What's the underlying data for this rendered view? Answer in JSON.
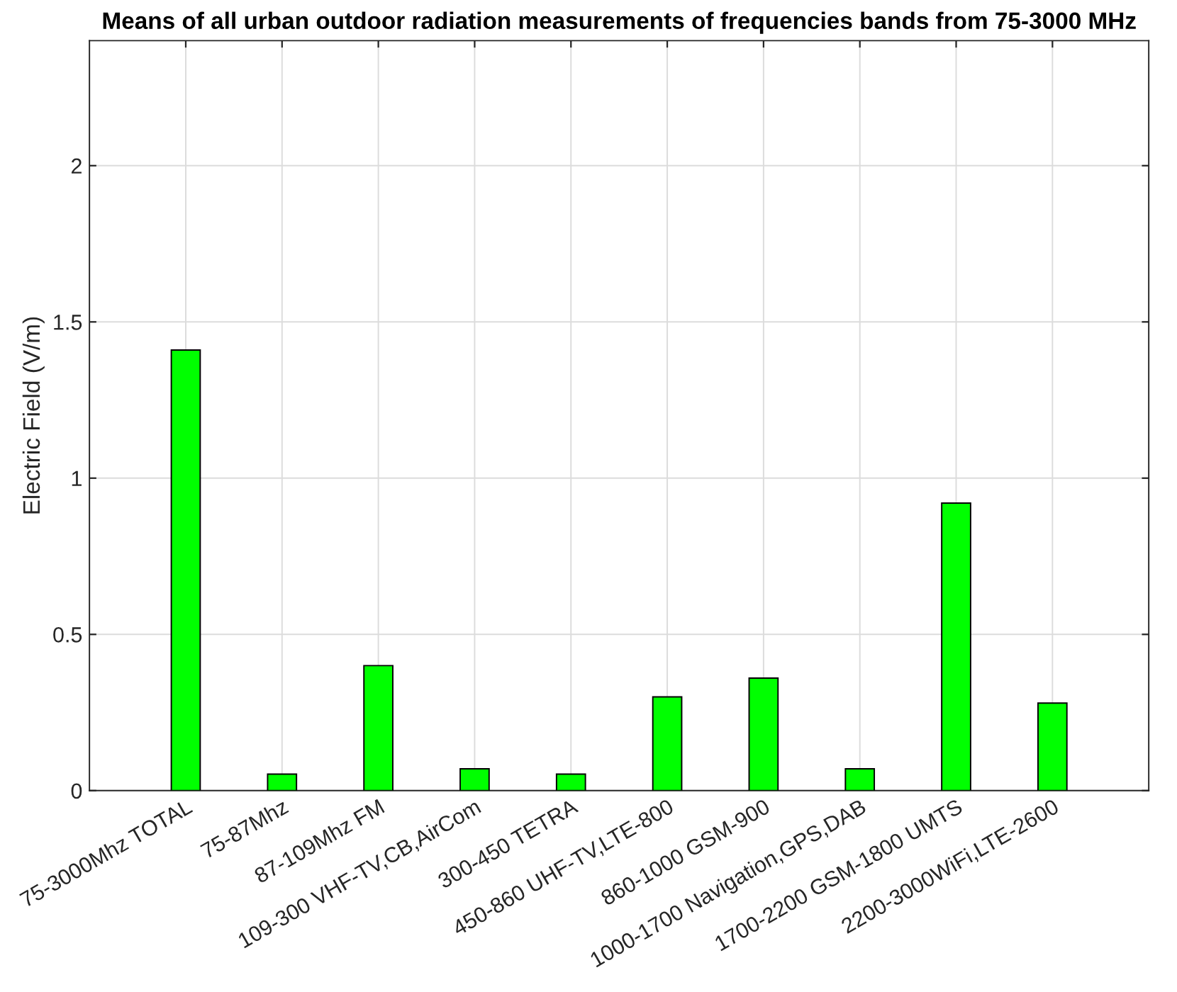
{
  "chart_data": {
    "type": "bar",
    "title": "Means of all urban outdoor radiation measurements of frequencies bands from 75-3000 MHz",
    "ylabel": "Electric Field (V/m)",
    "categories": [
      "75-3000Mhz TOTAL",
      "75-87Mhz",
      "87-109Mhz FM",
      "109-300 VHF-TV,CB,AirCom",
      "300-450 TETRA",
      "450-860 UHF-TV,LTE-800",
      "860-1000 GSM-900",
      "1000-1700 Navigation,GPS,DAB",
      "1700-2200 GSM-1800 UMTS",
      "2200-3000WiFi,LTE-2600"
    ],
    "values": [
      1.41,
      0.053,
      0.4,
      0.07,
      0.053,
      0.3,
      0.36,
      0.07,
      0.92,
      0.28
    ],
    "color": "#00ff00",
    "ylim": [
      0,
      2.4
    ],
    "yticks": [
      0,
      0.5,
      1,
      1.5,
      2
    ],
    "grid": true
  }
}
